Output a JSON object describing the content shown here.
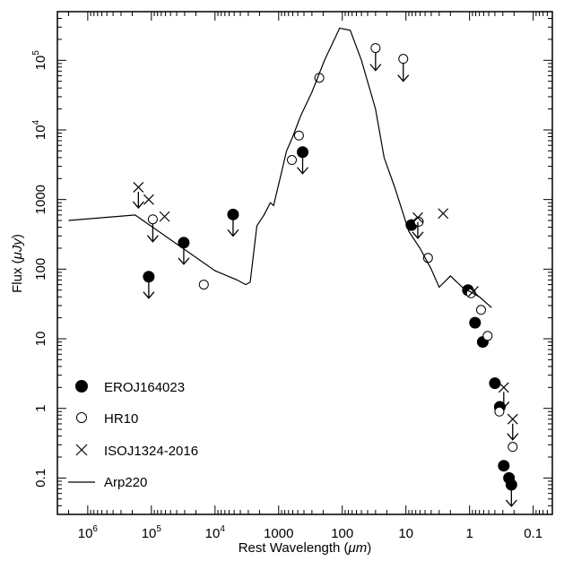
{
  "chart_data": {
    "type": "scatter",
    "title": "",
    "xlabel": "Rest Wavelength (",
    "xlabel_unit": "μm",
    "xlabel_close": ")",
    "ylabel": "Flux (",
    "ylabel_unit": "μJy",
    "ylabel_close": ")",
    "x_scale": "log",
    "y_scale": "log",
    "x_reversed": true,
    "xlim": [
      3000000,
      0.05
    ],
    "ylim": [
      0.03,
      500000
    ],
    "legend_position": "bottom-left",
    "x_ticks": [
      {
        "value": 1000000,
        "base": "10",
        "exp": "6"
      },
      {
        "value": 100000,
        "base": "10",
        "exp": "5"
      },
      {
        "value": 10000,
        "base": "10",
        "exp": "4"
      },
      {
        "value": 1000,
        "label": "1000"
      },
      {
        "value": 100,
        "label": "100"
      },
      {
        "value": 10,
        "label": "10"
      },
      {
        "value": 1,
        "label": "1"
      },
      {
        "value": 0.1,
        "label": "0.1"
      }
    ],
    "y_ticks": [
      {
        "value": 0.1,
        "label": "0.1"
      },
      {
        "value": 1,
        "label": "1"
      },
      {
        "value": 10,
        "label": "10"
      },
      {
        "value": 100,
        "label": "100"
      },
      {
        "value": 1000,
        "label": "1000"
      },
      {
        "value": 10000,
        "base": "10",
        "exp": "4"
      },
      {
        "value": 100000,
        "base": "10",
        "exp": "5"
      }
    ],
    "series": [
      {
        "name": "EROJ164023",
        "marker": "filled-circle",
        "points": [
          {
            "x": 110000,
            "y": 78,
            "upper_limit": true
          },
          {
            "x": 31000,
            "y": 240,
            "upper_limit": true
          },
          {
            "x": 5200,
            "y": 610,
            "upper_limit": true
          },
          {
            "x": 420,
            "y": 4800,
            "upper_limit": true
          },
          {
            "x": 8.2,
            "y": 430
          },
          {
            "x": 1.06,
            "y": 50
          },
          {
            "x": 0.82,
            "y": 17
          },
          {
            "x": 0.62,
            "y": 9
          },
          {
            "x": 0.4,
            "y": 2.3
          },
          {
            "x": 0.335,
            "y": 1.05
          },
          {
            "x": 0.29,
            "y": 0.15
          },
          {
            "x": 0.24,
            "y": 0.1
          },
          {
            "x": 0.22,
            "y": 0.08,
            "upper_limit": true
          }
        ]
      },
      {
        "name": "HR10",
        "marker": "open-circle",
        "points": [
          {
            "x": 95000,
            "y": 520,
            "upper_limit": true
          },
          {
            "x": 15000,
            "y": 60
          },
          {
            "x": 620,
            "y": 3700
          },
          {
            "x": 480,
            "y": 8300
          },
          {
            "x": 230,
            "y": 56000
          },
          {
            "x": 30,
            "y": 150000,
            "upper_limit": true
          },
          {
            "x": 11,
            "y": 105000,
            "upper_limit": true
          },
          {
            "x": 6.3,
            "y": 480
          },
          {
            "x": 4.5,
            "y": 145
          },
          {
            "x": 0.95,
            "y": 45
          },
          {
            "x": 0.66,
            "y": 26
          },
          {
            "x": 0.52,
            "y": 11
          },
          {
            "x": 0.34,
            "y": 0.9
          },
          {
            "x": 0.21,
            "y": 0.28
          }
        ]
      },
      {
        "name": "ISOJ1324-2016",
        "marker": "cross",
        "points": [
          {
            "x": 160000,
            "y": 1500,
            "upper_limit": true
          },
          {
            "x": 110000,
            "y": 1000
          },
          {
            "x": 62000,
            "y": 570
          },
          {
            "x": 6.5,
            "y": 550,
            "upper_limit": true
          },
          {
            "x": 2.6,
            "y": 630
          },
          {
            "x": 0.87,
            "y": 48
          },
          {
            "x": 0.29,
            "y": 2.0,
            "upper_limit": true
          },
          {
            "x": 0.21,
            "y": 0.7,
            "upper_limit": true
          }
        ]
      },
      {
        "name": "Arp220",
        "marker": "line",
        "points": [
          {
            "x": 2000000,
            "y": 500
          },
          {
            "x": 180000,
            "y": 600
          },
          {
            "x": 10000,
            "y": 95
          },
          {
            "x": 4500,
            "y": 70
          },
          {
            "x": 3300,
            "y": 60
          },
          {
            "x": 2800,
            "y": 65
          },
          {
            "x": 2200,
            "y": 420
          },
          {
            "x": 1700,
            "y": 600
          },
          {
            "x": 1350,
            "y": 900
          },
          {
            "x": 1200,
            "y": 820
          },
          {
            "x": 950,
            "y": 2000
          },
          {
            "x": 750,
            "y": 5000
          },
          {
            "x": 600,
            "y": 8000
          },
          {
            "x": 450,
            "y": 16000
          },
          {
            "x": 300,
            "y": 35000
          },
          {
            "x": 190,
            "y": 100000
          },
          {
            "x": 110,
            "y": 290000
          },
          {
            "x": 75,
            "y": 270000
          },
          {
            "x": 50,
            "y": 100000
          },
          {
            "x": 30,
            "y": 20000
          },
          {
            "x": 22,
            "y": 4000
          },
          {
            "x": 15,
            "y": 1500
          },
          {
            "x": 9,
            "y": 350
          },
          {
            "x": 6,
            "y": 200
          },
          {
            "x": 4,
            "y": 100
          },
          {
            "x": 3,
            "y": 55
          },
          {
            "x": 2,
            "y": 80
          },
          {
            "x": 1.3,
            "y": 55
          },
          {
            "x": 0.7,
            "y": 40
          },
          {
            "x": 0.45,
            "y": 28
          }
        ]
      }
    ]
  }
}
